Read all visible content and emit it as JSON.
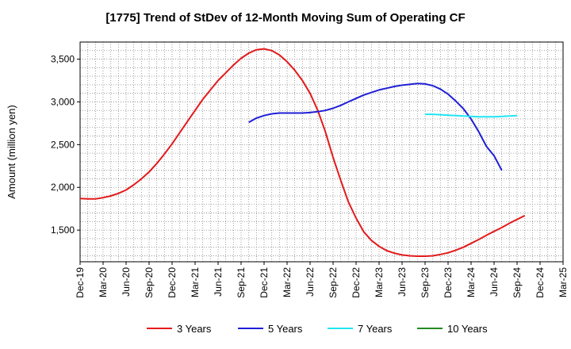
{
  "chart_data": {
    "type": "line",
    "title": "[1775]  Trend of StDev of 12-Month Moving Sum of Operating CF",
    "ylabel": "Amount (million yen)",
    "xlabel": "",
    "ylim": [
      1130,
      3700
    ],
    "yticks": [
      1500,
      2000,
      2500,
      3000,
      3500
    ],
    "ytick_labels": [
      "1,500",
      "2,000",
      "2,500",
      "3,000",
      "3,500"
    ],
    "x_start": "Dec-19",
    "x_end": "Mar-25",
    "x_tick_labels": [
      "Dec-19",
      "Mar-20",
      "Jun-20",
      "Sep-20",
      "Dec-20",
      "Mar-21",
      "Jun-21",
      "Sep-21",
      "Dec-21",
      "Mar-22",
      "Jun-22",
      "Sep-22",
      "Dec-22",
      "Mar-23",
      "Jun-23",
      "Sep-23",
      "Dec-23",
      "Mar-24",
      "Jun-24",
      "Sep-24",
      "Dec-24",
      "Mar-25"
    ],
    "grid": true,
    "legend_position": "bottom",
    "series": [
      {
        "name": "3 Years",
        "color": "#e31a1c",
        "points": [
          [
            "Dec-19",
            1870
          ],
          [
            "Jan-20",
            1865
          ],
          [
            "Feb-20",
            1865
          ],
          [
            "Mar-20",
            1880
          ],
          [
            "Apr-20",
            1900
          ],
          [
            "May-20",
            1930
          ],
          [
            "Jun-20",
            1970
          ],
          [
            "Jul-20",
            2030
          ],
          [
            "Aug-20",
            2100
          ],
          [
            "Sep-20",
            2180
          ],
          [
            "Oct-20",
            2280
          ],
          [
            "Nov-20",
            2390
          ],
          [
            "Dec-20",
            2510
          ],
          [
            "Jan-21",
            2640
          ],
          [
            "Feb-21",
            2770
          ],
          [
            "Mar-21",
            2900
          ],
          [
            "Apr-21",
            3030
          ],
          [
            "May-21",
            3140
          ],
          [
            "Jun-21",
            3250
          ],
          [
            "Jul-21",
            3340
          ],
          [
            "Aug-21",
            3430
          ],
          [
            "Sep-21",
            3510
          ],
          [
            "Oct-21",
            3570
          ],
          [
            "Nov-21",
            3610
          ],
          [
            "Dec-21",
            3620
          ],
          [
            "Jan-22",
            3600
          ],
          [
            "Feb-22",
            3550
          ],
          [
            "Mar-22",
            3470
          ],
          [
            "Apr-22",
            3370
          ],
          [
            "May-22",
            3250
          ],
          [
            "Jun-22",
            3100
          ],
          [
            "Jul-22",
            2900
          ],
          [
            "Aug-22",
            2650
          ],
          [
            "Sep-22",
            2350
          ],
          [
            "Oct-22",
            2080
          ],
          [
            "Nov-22",
            1830
          ],
          [
            "Dec-22",
            1640
          ],
          [
            "Jan-23",
            1480
          ],
          [
            "Feb-23",
            1380
          ],
          [
            "Mar-23",
            1310
          ],
          [
            "Apr-23",
            1260
          ],
          [
            "May-23",
            1230
          ],
          [
            "Jun-23",
            1210
          ],
          [
            "Jul-23",
            1200
          ],
          [
            "Aug-23",
            1195
          ],
          [
            "Sep-23",
            1195
          ],
          [
            "Oct-23",
            1200
          ],
          [
            "Nov-23",
            1215
          ],
          [
            "Dec-23",
            1235
          ],
          [
            "Jan-24",
            1265
          ],
          [
            "Feb-24",
            1300
          ],
          [
            "Mar-24",
            1345
          ],
          [
            "Apr-24",
            1390
          ],
          [
            "May-24",
            1440
          ],
          [
            "Jun-24",
            1485
          ],
          [
            "Jul-24",
            1530
          ],
          [
            "Aug-24",
            1580
          ],
          [
            "Sep-24",
            1625
          ],
          [
            "Oct-24",
            1670
          ]
        ]
      },
      {
        "name": "5 Years",
        "color": "#1f1fd6",
        "points": [
          [
            "Oct-21",
            2760
          ],
          [
            "Nov-21",
            2810
          ],
          [
            "Dec-21",
            2840
          ],
          [
            "Jan-22",
            2860
          ],
          [
            "Feb-22",
            2870
          ],
          [
            "Mar-22",
            2870
          ],
          [
            "Apr-22",
            2870
          ],
          [
            "May-22",
            2870
          ],
          [
            "Jun-22",
            2875
          ],
          [
            "Jul-22",
            2885
          ],
          [
            "Aug-22",
            2900
          ],
          [
            "Sep-22",
            2925
          ],
          [
            "Oct-22",
            2960
          ],
          [
            "Nov-22",
            3000
          ],
          [
            "Dec-22",
            3040
          ],
          [
            "Jan-23",
            3080
          ],
          [
            "Feb-23",
            3110
          ],
          [
            "Mar-23",
            3140
          ],
          [
            "Apr-23",
            3160
          ],
          [
            "May-23",
            3180
          ],
          [
            "Jun-23",
            3195
          ],
          [
            "Jul-23",
            3205
          ],
          [
            "Aug-23",
            3215
          ],
          [
            "Sep-23",
            3210
          ],
          [
            "Oct-23",
            3190
          ],
          [
            "Nov-23",
            3150
          ],
          [
            "Dec-23",
            3090
          ],
          [
            "Jan-24",
            3010
          ],
          [
            "Feb-24",
            2920
          ],
          [
            "Mar-24",
            2800
          ],
          [
            "Apr-24",
            2650
          ],
          [
            "May-24",
            2480
          ],
          [
            "Jun-24",
            2370
          ],
          [
            "Jul-24",
            2200
          ]
        ]
      },
      {
        "name": "7 Years",
        "color": "#22e5f2",
        "points": [
          [
            "Sep-23",
            2855
          ],
          [
            "Oct-23",
            2855
          ],
          [
            "Nov-23",
            2850
          ],
          [
            "Dec-23",
            2845
          ],
          [
            "Jan-24",
            2840
          ],
          [
            "Feb-24",
            2835
          ],
          [
            "Mar-24",
            2830
          ],
          [
            "Apr-24",
            2825
          ],
          [
            "May-24",
            2825
          ],
          [
            "Jun-24",
            2825
          ],
          [
            "Jul-24",
            2830
          ],
          [
            "Aug-24",
            2835
          ],
          [
            "Sep-24",
            2840
          ]
        ]
      },
      {
        "name": "10 Years",
        "color": "#228b22",
        "points": []
      }
    ]
  }
}
